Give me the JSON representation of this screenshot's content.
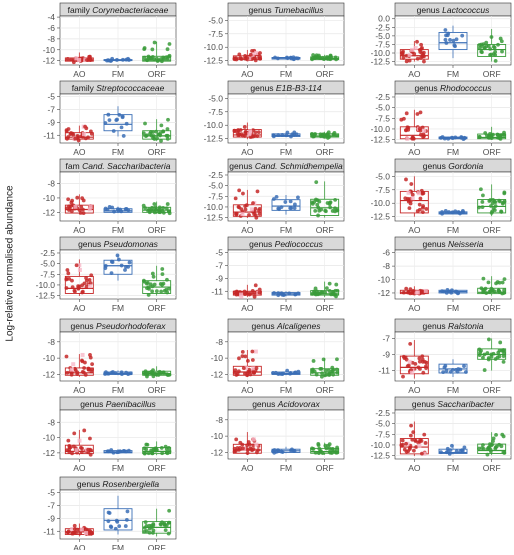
{
  "chart_data": {
    "type": "box",
    "ylabel": "Log-relative normalised abundance",
    "groups": [
      "AO",
      "FM",
      "ORF"
    ],
    "colors": {
      "AO": "#c62828",
      "FM": "#3b6fb6",
      "ORF": "#3a9b3a"
    },
    "grid": true,
    "facets": [
      {
        "prefix": "family",
        "name": "Corynebacteriaceae",
        "italic": true,
        "yticks": [
          -4,
          -6,
          -8,
          -10,
          -12
        ],
        "ylim": [
          -12.8,
          -3.8
        ],
        "box": {
          "AO": {
            "q1": -12.1,
            "med": -11.9,
            "q3": -11.5,
            "lo": -12.3,
            "hi": -10.5
          },
          "FM": {
            "q1": -12.0,
            "med": -11.9,
            "q3": -11.8,
            "lo": -12.1,
            "hi": -11.6
          },
          "ORF": {
            "q1": -12.1,
            "med": -11.9,
            "q3": -11.2,
            "lo": -12.3,
            "hi": -8.5
          }
        }
      },
      {
        "prefix": "genus",
        "name": "Tumebacillus",
        "italic": true,
        "yticks": [
          -5.0,
          -7.5,
          -10.0,
          -12.5
        ],
        "ylim": [
          -13.3,
          -4.2
        ],
        "box": {
          "AO": {
            "q1": -12.3,
            "med": -12.0,
            "q3": -11.6,
            "lo": -12.6,
            "hi": -10.5
          },
          "FM": {
            "q1": -12.2,
            "med": -12.0,
            "q3": -11.9,
            "lo": -12.3,
            "hi": -11.7
          },
          "ORF": {
            "q1": -12.3,
            "med": -12.1,
            "q3": -11.8,
            "lo": -12.5,
            "hi": -11.4
          }
        }
      },
      {
        "prefix": "genus",
        "name": "Lactococcus",
        "italic": true,
        "yticks": [
          0.0,
          -2.5,
          -5.0,
          -7.5,
          -10.0,
          -12.5
        ],
        "ylim": [
          -13.5,
          0.8
        ],
        "box": {
          "AO": {
            "q1": -11.8,
            "med": -10.8,
            "q3": -9.0,
            "lo": -12.5,
            "hi": -6.5
          },
          "FM": {
            "q1": -9.0,
            "med": -7.0,
            "q3": -4.0,
            "lo": -11.5,
            "hi": -2.0
          },
          "ORF": {
            "q1": -11.0,
            "med": -9.0,
            "q3": -7.5,
            "lo": -12.5,
            "hi": -3.0
          }
        }
      },
      {
        "prefix": "family",
        "name": "Streptococcaceae",
        "italic": true,
        "yticks": [
          -5,
          -7,
          -9,
          -11
        ],
        "ylim": [
          -12.2,
          -4.6
        ],
        "box": {
          "AO": {
            "q1": -11.6,
            "med": -11.3,
            "q3": -10.6,
            "lo": -11.9,
            "hi": -9.5
          },
          "FM": {
            "q1": -10.3,
            "med": -9.3,
            "q3": -7.8,
            "lo": -11.2,
            "hi": -6.5
          },
          "ORF": {
            "q1": -11.6,
            "med": -11.1,
            "q3": -10.3,
            "lo": -11.9,
            "hi": -8.5
          }
        }
      },
      {
        "prefix": "genus",
        "name": "E1B-B3-114",
        "italic": true,
        "yticks": [
          -5.0,
          -7.5,
          -10.0,
          -12.5
        ],
        "ylim": [
          -13.3,
          -4.2
        ],
        "box": {
          "AO": {
            "q1": -12.2,
            "med": -11.8,
            "q3": -10.8,
            "lo": -12.6,
            "hi": -9.5
          },
          "FM": {
            "q1": -12.1,
            "med": -11.9,
            "q3": -11.6,
            "lo": -12.2,
            "hi": -11.3
          },
          "ORF": {
            "q1": -12.2,
            "med": -12.0,
            "q3": -11.6,
            "lo": -12.4,
            "hi": -11.2
          }
        }
      },
      {
        "prefix": "genus",
        "name": "Rhodococcus",
        "italic": true,
        "yticks": [
          -2.5,
          -5.0,
          -7.5,
          -10.0,
          -12.5
        ],
        "ylim": [
          -13.3,
          -1.8
        ],
        "box": {
          "AO": {
            "q1": -12.3,
            "med": -11.5,
            "q3": -9.5,
            "lo": -12.6,
            "hi": -5.5
          },
          "FM": {
            "q1": -12.3,
            "med": -12.1,
            "q3": -11.9,
            "lo": -12.4,
            "hi": -11.7
          },
          "ORF": {
            "q1": -12.3,
            "med": -12.0,
            "q3": -11.2,
            "lo": -12.5,
            "hi": -9.5
          }
        }
      },
      {
        "prefix": "fam",
        "name": "Cand. Saccharibacteria",
        "italic": true,
        "yticks": [
          -8,
          -10,
          -12
        ],
        "ylim": [
          -13.2,
          -6.4
        ],
        "box": {
          "AO": {
            "q1": -12.1,
            "med": -11.6,
            "q3": -11.0,
            "lo": -12.3,
            "hi": -9.5
          },
          "FM": {
            "q1": -12.0,
            "med": -11.8,
            "q3": -11.5,
            "lo": -12.1,
            "hi": -11.2
          },
          "ORF": {
            "q1": -12.0,
            "med": -11.7,
            "q3": -11.3,
            "lo": -12.2,
            "hi": -10.5
          }
        }
      },
      {
        "prefix": "genus",
        "name": "Cand. Schmidhempelia",
        "italic": true,
        "yticks": [
          -2.5,
          -5.0,
          -7.5,
          -10.0,
          -12.5
        ],
        "ylim": [
          -13.3,
          -1.8
        ],
        "box": {
          "AO": {
            "q1": -12.2,
            "med": -11.2,
            "q3": -9.5,
            "lo": -12.6,
            "hi": -6.0
          },
          "FM": {
            "q1": -10.8,
            "med": -9.8,
            "q3": -8.3,
            "lo": -11.8,
            "hi": -7.2
          },
          "ORF": {
            "q1": -12.0,
            "med": -10.2,
            "q3": -8.2,
            "lo": -12.5,
            "hi": -4.0
          }
        }
      },
      {
        "prefix": "genus",
        "name": "Gordonia",
        "italic": true,
        "yticks": [
          -5.0,
          -7.5,
          -10.0,
          -12.5
        ],
        "ylim": [
          -13.3,
          -4.2
        ],
        "box": {
          "AO": {
            "q1": -11.8,
            "med": -9.5,
            "q3": -7.8,
            "lo": -12.5,
            "hi": -5.0
          },
          "FM": {
            "q1": -12.0,
            "med": -11.8,
            "q3": -11.6,
            "lo": -12.1,
            "hi": -11.4
          },
          "ORF": {
            "q1": -11.8,
            "med": -10.6,
            "q3": -9.3,
            "lo": -12.4,
            "hi": -6.5
          }
        }
      },
      {
        "prefix": "genus",
        "name": "Pseudomonas",
        "italic": true,
        "yticks": [
          -2.5,
          -5.0,
          -7.5,
          -10.0,
          -12.5
        ],
        "ylim": [
          -13.3,
          -1.8
        ],
        "box": {
          "AO": {
            "q1": -12.0,
            "med": -10.8,
            "q3": -8.0,
            "lo": -12.6,
            "hi": -4.0
          },
          "FM": {
            "q1": -7.5,
            "med": -5.5,
            "q3": -4.2,
            "lo": -9.0,
            "hi": -3.0
          },
          "ORF": {
            "q1": -12.0,
            "med": -10.5,
            "q3": -9.0,
            "lo": -12.5,
            "hi": -5.5
          }
        }
      },
      {
        "prefix": "genus",
        "name": "Pediococcus",
        "italic": true,
        "yticks": [
          -5,
          -7,
          -9,
          -11
        ],
        "ylim": [
          -12.2,
          -4.6
        ],
        "box": {
          "AO": {
            "q1": -11.6,
            "med": -11.4,
            "q3": -11.0,
            "lo": -11.9,
            "hi": -10.0
          },
          "FM": {
            "q1": -11.6,
            "med": -11.4,
            "q3": -11.2,
            "lo": -11.8,
            "hi": -11.0
          },
          "ORF": {
            "q1": -11.6,
            "med": -11.4,
            "q3": -10.9,
            "lo": -11.9,
            "hi": -9.5
          }
        }
      },
      {
        "prefix": "genus",
        "name": "Neisseria",
        "italic": true,
        "yticks": [
          -6,
          -8,
          -10,
          -12
        ],
        "ylim": [
          -12.9,
          -5.6
        ],
        "box": {
          "AO": {
            "q1": -12.1,
            "med": -11.9,
            "q3": -11.6,
            "lo": -12.3,
            "hi": -11.0
          },
          "FM": {
            "q1": -12.0,
            "med": -11.8,
            "q3": -11.6,
            "lo": -12.1,
            "hi": -11.4
          },
          "ORF": {
            "q1": -12.1,
            "med": -11.9,
            "q3": -11.3,
            "lo": -12.4,
            "hi": -9.5
          }
        }
      },
      {
        "prefix": "genus",
        "name": "Pseudorhodoferax",
        "italic": true,
        "yticks": [
          -8,
          -10,
          -12
        ],
        "ylim": [
          -12.8,
          -6.8
        ],
        "box": {
          "AO": {
            "q1": -12.1,
            "med": -11.8,
            "q3": -11.2,
            "lo": -12.3,
            "hi": -9.5
          },
          "FM": {
            "q1": -12.0,
            "med": -11.9,
            "q3": -11.7,
            "lo": -12.1,
            "hi": -11.5
          },
          "ORF": {
            "q1": -12.1,
            "med": -11.9,
            "q3": -11.6,
            "lo": -12.3,
            "hi": -11.0
          }
        }
      },
      {
        "prefix": "genus",
        "name": "Alcaligenes",
        "italic": true,
        "yticks": [
          -8,
          -10,
          -12
        ],
        "ylim": [
          -12.8,
          -6.8
        ],
        "box": {
          "AO": {
            "q1": -12.1,
            "med": -11.7,
            "q3": -11.0,
            "lo": -12.3,
            "hi": -9.0
          },
          "FM": {
            "q1": -12.0,
            "med": -11.9,
            "q3": -11.7,
            "lo": -12.1,
            "hi": -11.5
          },
          "ORF": {
            "q1": -12.1,
            "med": -11.8,
            "q3": -11.3,
            "lo": -12.3,
            "hi": -10.0
          }
        }
      },
      {
        "prefix": "genus",
        "name": "Ralstonia",
        "italic": true,
        "yticks": [
          -7,
          -9,
          -11
        ],
        "ylim": [
          -12.3,
          -6.2
        ],
        "box": {
          "AO": {
            "q1": -11.4,
            "med": -10.6,
            "q3": -9.2,
            "lo": -12.0,
            "hi": -7.2
          },
          "FM": {
            "q1": -11.3,
            "med": -10.8,
            "q3": -10.2,
            "lo": -11.8,
            "hi": -9.6
          },
          "ORF": {
            "q1": -9.6,
            "med": -9.0,
            "q3": -8.3,
            "lo": -11.0,
            "hi": -7.0
          }
        }
      },
      {
        "prefix": "genus",
        "name": "Paenibacillus",
        "italic": true,
        "yticks": [
          -8,
          -10,
          -12
        ],
        "ylim": [
          -12.8,
          -6.4
        ],
        "box": {
          "AO": {
            "q1": -12.1,
            "med": -11.8,
            "q3": -11.0,
            "lo": -12.3,
            "hi": -9.0
          },
          "FM": {
            "q1": -12.0,
            "med": -11.9,
            "q3": -11.7,
            "lo": -12.1,
            "hi": -11.5
          },
          "ORF": {
            "q1": -12.1,
            "med": -11.8,
            "q3": -11.3,
            "lo": -12.3,
            "hi": -10.5
          }
        }
      },
      {
        "prefix": "genus",
        "name": "Acidovorax",
        "italic": true,
        "yticks": [
          -8,
          -10,
          -12
        ],
        "ylim": [
          -12.8,
          -6.8
        ],
        "box": {
          "AO": {
            "q1": -12.1,
            "med": -11.7,
            "q3": -11.0,
            "lo": -12.3,
            "hi": -9.5
          },
          "FM": {
            "q1": -12.0,
            "med": -11.8,
            "q3": -11.6,
            "lo": -12.1,
            "hi": -11.3
          },
          "ORF": {
            "q1": -12.1,
            "med": -11.9,
            "q3": -11.5,
            "lo": -12.3,
            "hi": -10.8
          }
        }
      },
      {
        "prefix": "genus",
        "name": "Saccharibacter",
        "italic": true,
        "yticks": [
          -2.5,
          -5.0,
          -7.5,
          -10.0,
          -12.5
        ],
        "ylim": [
          -13.3,
          -1.8
        ],
        "box": {
          "AO": {
            "q1": -12.1,
            "med": -10.5,
            "q3": -8.5,
            "lo": -12.6,
            "hi": -4.5
          },
          "FM": {
            "q1": -12.0,
            "med": -11.8,
            "q3": -11.0,
            "lo": -12.2,
            "hi": -10.0
          },
          "ORF": {
            "q1": -12.0,
            "med": -11.3,
            "q3": -9.8,
            "lo": -12.4,
            "hi": -7.0
          }
        }
      },
      {
        "prefix": "genus",
        "name": "Rosenbergiella",
        "italic": true,
        "yticks": [
          -5,
          -7,
          -9,
          -11
        ],
        "ylim": [
          -12.2,
          -4.6
        ],
        "box": {
          "AO": {
            "q1": -11.5,
            "med": -11.1,
            "q3": -10.6,
            "lo": -11.8,
            "hi": -9.8
          },
          "FM": {
            "q1": -10.8,
            "med": -9.3,
            "q3": -7.5,
            "lo": -11.5,
            "hi": -5.5
          },
          "ORF": {
            "q1": -11.3,
            "med": -10.4,
            "q3": -9.5,
            "lo": -11.8,
            "hi": -7.5
          }
        }
      }
    ]
  }
}
